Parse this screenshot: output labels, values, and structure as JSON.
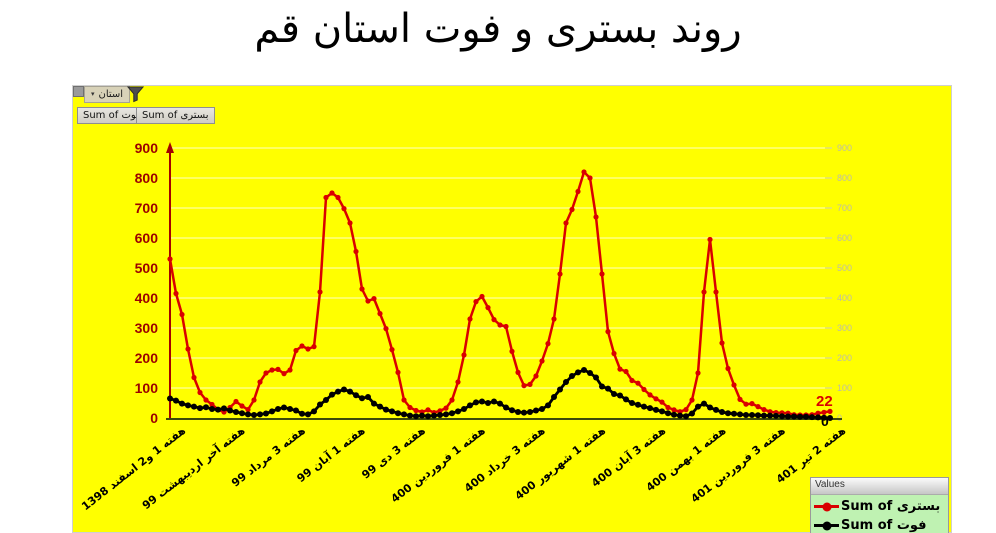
{
  "page": {
    "title": "روند بستری و فوت استان قم"
  },
  "filter": {
    "label": "استان",
    "caret": "▾"
  },
  "field_buttons": [
    {
      "label": "Sum of فوت"
    },
    {
      "label": "Sum of بستری"
    }
  ],
  "legend": {
    "header": "Values",
    "items": [
      {
        "label": "Sum of بستری",
        "color": "#d90000"
      },
      {
        "label": "Sum of فوت",
        "color": "#000000"
      }
    ]
  },
  "end_labels": {
    "bastari": "22",
    "fout": "0"
  },
  "chart_data": {
    "type": "line",
    "title": "روند بستری و فوت استان قم",
    "xlabel": "",
    "ylabel": "",
    "ylim": [
      0,
      900
    ],
    "ytick_step": 100,
    "grid": "horizontal",
    "legend_position": "bottom-right",
    "axis_colors": {
      "left_labels": "#9b0000",
      "right_labels": "#bcbca6",
      "y_axis_line": "#a40000",
      "x_axis_line": "#3d4a08"
    },
    "background": "#ffff00",
    "categories": [
      "هفته 1 و2 اسفند 1398",
      "هفته آخر اردیبهشت 99",
      "هفته 3 مرداد 99",
      "هفته 1 آبان 99",
      "هفته 3 دی 99",
      "هفته 1 فروردین 400",
      "هفته 3 خرداد 400",
      "هفته 1 شهریور 400",
      "هفته 3 آبان 400",
      "هفته 1 بهمن 400",
      "هفته 3 فروردین 401",
      "هفته 2 تیر 401"
    ],
    "points_per_category_gap": 10,
    "n_points": 111,
    "series": [
      {
        "name": "Sum of بستری",
        "color": "#d90000",
        "values": [
          530,
          415,
          345,
          230,
          135,
          85,
          60,
          45,
          28,
          20,
          35,
          55,
          40,
          28,
          60,
          120,
          150,
          160,
          162,
          148,
          160,
          225,
          240,
          230,
          238,
          420,
          735,
          750,
          735,
          698,
          650,
          555,
          430,
          390,
          398,
          348,
          298,
          228,
          152,
          60,
          35,
          25,
          20,
          27,
          18,
          24,
          33,
          60,
          120,
          210,
          330,
          388,
          405,
          368,
          328,
          310,
          305,
          222,
          152,
          108,
          112,
          140,
          190,
          248,
          330,
          480,
          650,
          695,
          755,
          820,
          800,
          670,
          480,
          288,
          215,
          163,
          155,
          125,
          116,
          95,
          77,
          64,
          53,
          35,
          27,
          21,
          28,
          60,
          150,
          420,
          595,
          420,
          250,
          165,
          110,
          62,
          46,
          48,
          38,
          28,
          21,
          18,
          17,
          16,
          11,
          10,
          10,
          11,
          16,
          19,
          22
        ]
      },
      {
        "name": "Sum of فوت",
        "color": "#000000",
        "values": [
          65,
          58,
          48,
          42,
          38,
          33,
          36,
          30,
          28,
          32,
          25,
          20,
          16,
          12,
          10,
          12,
          15,
          22,
          30,
          35,
          30,
          25,
          14,
          12,
          22,
          45,
          60,
          78,
          88,
          95,
          88,
          76,
          66,
          70,
          48,
          38,
          28,
          22,
          16,
          12,
          8,
          6,
          8,
          6,
          8,
          10,
          12,
          16,
          22,
          30,
          42,
          52,
          55,
          50,
          55,
          48,
          35,
          26,
          20,
          18,
          20,
          25,
          30,
          42,
          70,
          95,
          120,
          140,
          152,
          160,
          150,
          135,
          105,
          98,
          80,
          75,
          62,
          50,
          44,
          38,
          33,
          27,
          22,
          16,
          11,
          8,
          6,
          15,
          38,
          48,
          35,
          27,
          20,
          16,
          14,
          12,
          10,
          10,
          9,
          8,
          8,
          7,
          6,
          5,
          5,
          4,
          4,
          3,
          2,
          1,
          0
        ]
      }
    ]
  }
}
